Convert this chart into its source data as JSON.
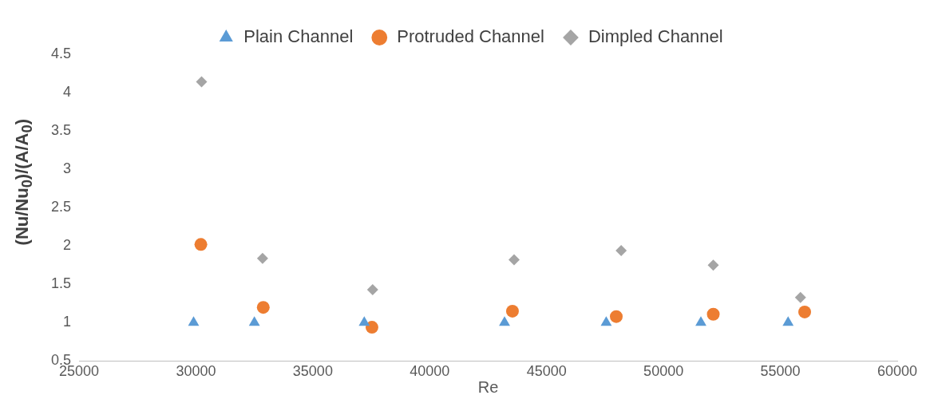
{
  "chart_data": {
    "type": "scatter",
    "xlabel": "Re",
    "ylabel": "(Nu/Nu$_{0}$)/(A/A$_{0}$)",
    "xlim": [
      25000,
      60000
    ],
    "xticks": [
      25000,
      30000,
      35000,
      40000,
      45000,
      50000,
      55000,
      60000
    ],
    "ylim": [
      0.5,
      4.5
    ],
    "yticks": [
      0.5,
      1,
      1.5,
      2,
      2.5,
      3,
      3.5,
      4,
      4.5
    ],
    "grid": false,
    "legend": "top",
    "series": [
      {
        "name": "Plain Channel",
        "color": "#5b9bd5",
        "marker": "triangle",
        "x": [
          29900,
          32500,
          37200,
          43200,
          47550,
          51600,
          55330
        ],
        "values": [
          1,
          1,
          1,
          1,
          1,
          1,
          1
        ]
      },
      {
        "name": "Protruded Channel",
        "color": "#ed7d31",
        "marker": "circle",
        "x": [
          30210,
          32880,
          37530,
          43540,
          47980,
          52130,
          56040
        ],
        "values": [
          2.02,
          1.2,
          0.94,
          1.15,
          1.08,
          1.11,
          1.14
        ]
      },
      {
        "name": "Dimpled Channel",
        "color": "#a5a5a5",
        "marker": "diamond",
        "x": [
          30240,
          32850,
          37560,
          43610,
          48190,
          52130,
          55860
        ],
        "values": [
          4.14,
          1.84,
          1.43,
          1.82,
          1.94,
          1.75,
          1.33
        ]
      }
    ]
  }
}
